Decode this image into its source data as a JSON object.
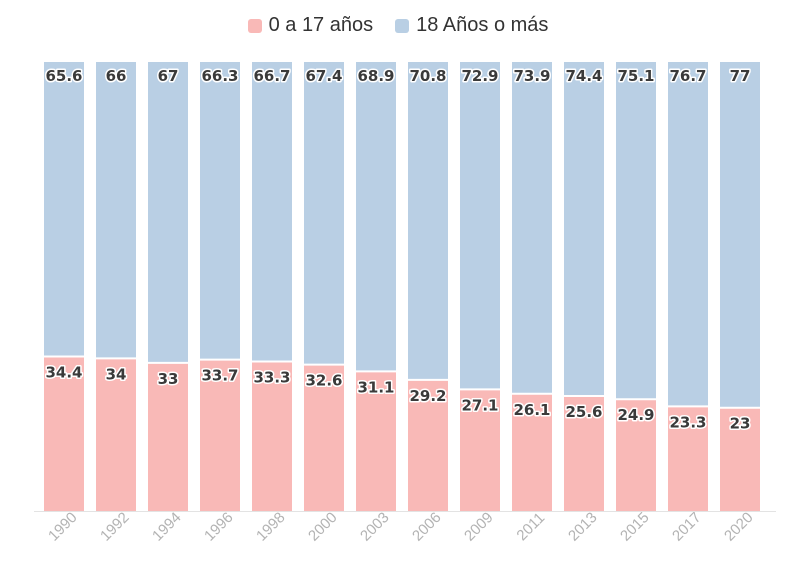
{
  "chart_data": {
    "type": "bar",
    "stacked": true,
    "categories": [
      "1990",
      "1992",
      "1994",
      "1996",
      "1998",
      "2000",
      "2003",
      "2006",
      "2009",
      "2011",
      "2013",
      "2015",
      "2017",
      "2020"
    ],
    "series": [
      {
        "name": "0 a 17 años",
        "color": "#f9b9b7",
        "values": [
          34.4,
          34,
          33,
          33.7,
          33.3,
          32.6,
          31.1,
          29.2,
          27.1,
          26.1,
          25.6,
          24.9,
          23.3,
          23
        ]
      },
      {
        "name": "18 Años o más",
        "color": "#b9cfe4",
        "values": [
          65.6,
          66,
          67,
          66.3,
          66.7,
          67.4,
          68.9,
          70.8,
          72.9,
          73.9,
          74.4,
          75.1,
          76.7,
          77
        ]
      }
    ],
    "ylim": [
      0,
      100
    ],
    "grid": false,
    "legend": "top-center",
    "data_labels": true
  }
}
